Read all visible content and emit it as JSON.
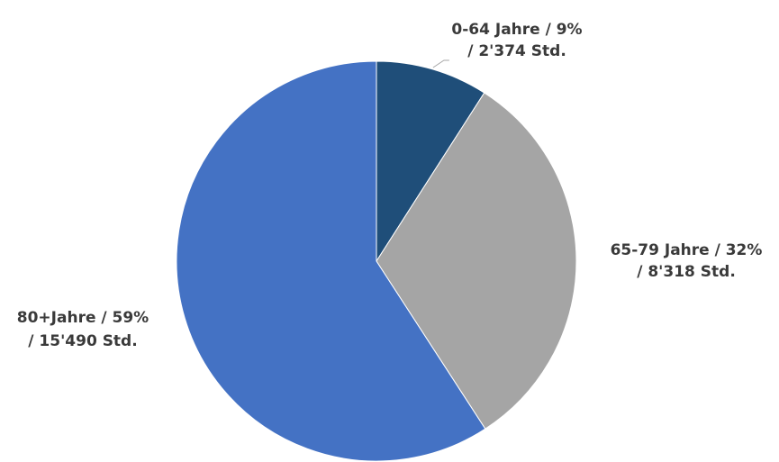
{
  "chart_data": {
    "type": "pie",
    "slices": [
      {
        "label_line1": "0-64 Jahre / 9%",
        "label_line2": "/ 2'374 Std.",
        "category": "0-64 Jahre",
        "percent": 9,
        "value": 2374,
        "color": "#1f4e79"
      },
      {
        "label_line1": "65-79 Jahre / 32%",
        "label_line2": "/ 8'318 Std.",
        "category": "65-79 Jahre",
        "percent": 32,
        "value": 8318,
        "color": "#a5a5a5"
      },
      {
        "label_line1": "80+Jahre / 59%",
        "label_line2": "/ 15'490 Std.",
        "category": "80+Jahre",
        "percent": 59,
        "value": 15490,
        "color": "#4472c4"
      }
    ],
    "start_angle_deg": 0,
    "direction": "clockwise",
    "legend": "none"
  }
}
